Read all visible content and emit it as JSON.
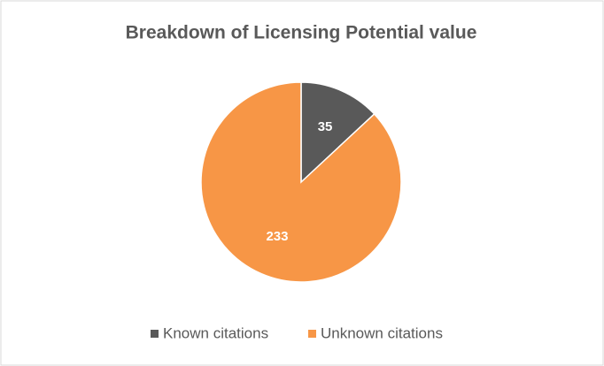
{
  "chart_data": {
    "type": "pie",
    "title": "Breakdown of Licensing Potential value",
    "categories": [
      "Known citations",
      "Unknown citations"
    ],
    "values": [
      35,
      233
    ],
    "colors": [
      "#595959",
      "#f79646"
    ],
    "legend": "bottom"
  }
}
